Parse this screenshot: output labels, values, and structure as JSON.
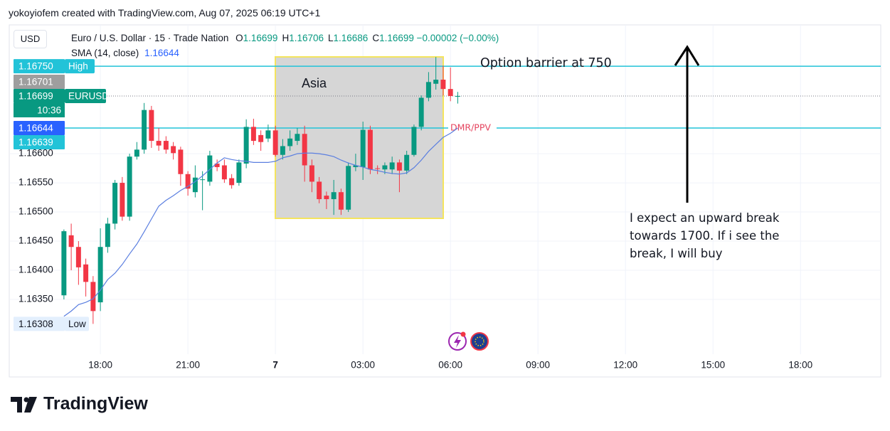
{
  "caption": "yokoyiofem created with TradingView.com, Aug 07, 2025 06:19 UTC+1",
  "footer": "TradingView",
  "chart_data": {
    "type": "candlestick",
    "title": "Euro / U.S. Dollar · 15 · Trade Nation",
    "currency": "USD",
    "ohlc": [
      {
        "label": "O",
        "value": 1.16699
      },
      {
        "label": "H",
        "value": 1.16706
      },
      {
        "label": "L",
        "value": 1.16686
      },
      {
        "label": "C",
        "value": 1.16699
      }
    ],
    "change": "−0.00002 (−0.00%)",
    "up_color": "#089981",
    "down_color": "#f23645",
    "x": [
      16.75,
      17,
      17.25,
      17.5,
      17.75,
      18,
      18.25,
      18.5,
      18.75,
      19,
      19.25,
      19.5,
      19.75,
      20,
      20.25,
      20.5,
      20.75,
      21,
      21.25,
      21.5,
      21.75,
      22,
      22.25,
      22.5,
      22.75,
      23,
      23.25,
      23.5,
      23.75,
      24,
      24.25,
      24.5,
      24.75,
      25,
      25.25,
      25.5,
      25.75,
      26,
      26.25,
      26.5,
      26.75,
      27,
      27.25,
      27.5,
      27.75,
      28,
      28.25,
      28.5,
      28.75,
      29,
      29.25,
      29.5,
      29.75,
      30,
      30.25
    ],
    "open": [
      1.16357,
      1.1646,
      1.1644,
      1.1641,
      1.1638,
      1.16345,
      1.1644,
      1.1648,
      1.1655,
      1.16492,
      1.16595,
      1.16607,
      1.16675,
      1.16622,
      1.16622,
      1.16613,
      1.16607,
      1.16565,
      1.16534,
      1.16555,
      1.16552,
      1.16583,
      1.1658,
      1.16558,
      1.1655,
      1.16583,
      1.16646,
      1.16632,
      1.16626,
      1.1664,
      1.16598,
      1.16613,
      1.16622,
      1.16634,
      1.1658,
      1.16552,
      1.16528,
      1.16522,
      1.16534,
      1.16504,
      1.16577,
      1.16577,
      1.16641,
      1.16575,
      1.16573,
      1.16573,
      1.16585,
      1.16571,
      1.16598,
      1.16646,
      1.16696,
      1.1672,
      1.16727,
      1.16711,
      1.16699
    ],
    "high": [
      1.1647,
      1.1648,
      1.1645,
      1.1642,
      1.1639,
      1.16472,
      1.1649,
      1.16555,
      1.1656,
      1.166,
      1.1662,
      1.16687,
      1.16682,
      1.16644,
      1.1663,
      1.1662,
      1.16612,
      1.1657,
      1.1658,
      1.1657,
      1.16605,
      1.1659,
      1.1659,
      1.16565,
      1.1659,
      1.16659,
      1.1666,
      1.1664,
      1.1665,
      1.16648,
      1.16625,
      1.1664,
      1.16644,
      1.16648,
      1.1659,
      1.1656,
      1.16535,
      1.16555,
      1.1654,
      1.16585,
      1.166,
      1.16655,
      1.16648,
      1.1658,
      1.16585,
      1.16595,
      1.1659,
      1.16605,
      1.1665,
      1.167,
      1.1674,
      1.16766,
      1.16751,
      1.16748,
      1.16706
    ],
    "low": [
      1.1635,
      1.164,
      1.16375,
      1.16355,
      1.16308,
      1.1633,
      1.1643,
      1.1647,
      1.16485,
      1.16485,
      1.1659,
      1.166,
      1.1661,
      1.16605,
      1.166,
      1.1659,
      1.16545,
      1.16528,
      1.16525,
      1.16503,
      1.16545,
      1.1657,
      1.1655,
      1.1654,
      1.16545,
      1.16575,
      1.16615,
      1.16605,
      1.1662,
      1.16595,
      1.1659,
      1.16605,
      1.16615,
      1.16552,
      1.16534,
      1.16515,
      1.16505,
      1.16495,
      1.16495,
      1.165,
      1.1657,
      1.16555,
      1.16565,
      1.16565,
      1.16565,
      1.16565,
      1.16534,
      1.16565,
      1.16595,
      1.1664,
      1.1669,
      1.1671,
      1.167,
      1.1669,
      1.16686
    ],
    "close": [
      1.16467,
      1.1644,
      1.16405,
      1.1638,
      1.1633,
      1.1644,
      1.1648,
      1.1655,
      1.16492,
      1.16595,
      1.16607,
      1.16675,
      1.16622,
      1.16614,
      1.16607,
      1.16601,
      1.16565,
      1.1654,
      1.16559,
      1.16556,
      1.16597,
      1.16577,
      1.16556,
      1.16546,
      1.16585,
      1.16646,
      1.16622,
      1.1662,
      1.1664,
      1.16598,
      1.16613,
      1.16626,
      1.16634,
      1.1658,
      1.16552,
      1.16522,
      1.16522,
      1.16534,
      1.16504,
      1.16579,
      1.1658,
      1.16641,
      1.16573,
      1.16574,
      1.1658,
      1.16585,
      1.16571,
      1.16598,
      1.16646,
      1.16696,
      1.16723,
      1.16727,
      1.16711,
      1.16699,
      1.16699
    ],
    "sma": {
      "name": "SMA (14, close)",
      "color": "#5b7fe0",
      "values": [
        1.16321,
        1.1633,
        1.16341,
        1.16345,
        1.16351,
        1.16366,
        1.16384,
        1.16395,
        1.1641,
        1.16428,
        1.16445,
        1.16466,
        1.16488,
        1.1651,
        1.1652,
        1.16528,
        1.16537,
        1.16544,
        1.16552,
        1.16562,
        1.16573,
        1.16584,
        1.16593,
        1.1659,
        1.16588,
        1.16587,
        1.16585,
        1.16585,
        1.16585,
        1.16587,
        1.16593,
        1.16596,
        1.166,
        1.16601,
        1.16601,
        1.166,
        1.16598,
        1.16595,
        1.16589,
        1.16584,
        1.1658,
        1.16577,
        1.16573,
        1.16571,
        1.16568,
        1.16566,
        1.16565,
        1.16567,
        1.16576,
        1.16589,
        1.16604,
        1.16616,
        1.16628,
        1.16635,
        1.16644
      ]
    },
    "xlim": [
      14.9,
      44.75
    ],
    "ylim": [
      1.16256,
      1.16821
    ],
    "xticks": [
      {
        "value": 18,
        "label": "18:00"
      },
      {
        "value": 21,
        "label": "21:00"
      },
      {
        "value": 24,
        "label": "7"
      },
      {
        "value": 27,
        "label": "03:00"
      },
      {
        "value": 30,
        "label": "06:00"
      },
      {
        "value": 33,
        "label": "09:00"
      },
      {
        "value": 36,
        "label": "12:00"
      },
      {
        "value": 39,
        "label": "15:00"
      },
      {
        "value": 42,
        "label": "18:00"
      }
    ],
    "yticks": [
      {
        "value": 1.1635,
        "label": "1.16350"
      },
      {
        "value": 1.164,
        "label": "1.16400"
      },
      {
        "value": 1.1645,
        "label": "1.16450"
      },
      {
        "value": 1.165,
        "label": "1.16500"
      },
      {
        "value": 1.1655,
        "label": "1.16550"
      },
      {
        "value": 1.166,
        "label": "1.16600"
      }
    ],
    "grid": true,
    "price_labels": [
      {
        "value": 1.1675,
        "label": "1.16750",
        "color": "#22c3d8",
        "tag": "High"
      },
      {
        "value": 1.16701,
        "label": "1.16701",
        "color": "#9e9e9e"
      },
      {
        "value": 1.16699,
        "label": "1.16699",
        "color": "#089981",
        "tag": "EURUSD",
        "sub": "10:36"
      },
      {
        "value": 1.16644,
        "label": "1.16644",
        "color": "#2962ff"
      },
      {
        "value": 1.16639,
        "label": "1.16639",
        "color": "#22c3d8"
      },
      {
        "value": 1.16308,
        "label": "1.16308",
        "color": "#e3effd",
        "tag": "Low"
      }
    ],
    "levels": [
      {
        "value": 1.1675,
        "label": "Option barrier at 750",
        "color": "#22c3d8",
        "label_color": "#131722"
      },
      {
        "value": 1.16644,
        "label": "DMR/PPV",
        "color": "#22c3d8",
        "label_color": "#e5455f"
      }
    ],
    "box_label": "Asia",
    "note": [
      "I expect an upward break",
      "towards 1700. If i see the",
      "break, I will buy"
    ]
  }
}
